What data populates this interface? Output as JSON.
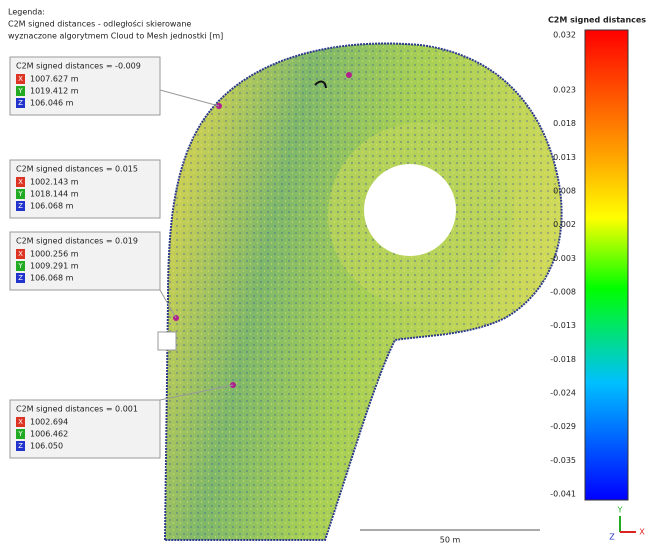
{
  "legend": {
    "lines": [
      "Legenda:",
      "C2M signed distances - odległości skierowane",
      "wyznaczone algorytmem Cloud to Mesh jednostki [m]"
    ]
  },
  "labels": [
    {
      "title": "C2M signed distances = -0.009",
      "rows": [
        {
          "axis": "X",
          "value": "1007.627 m"
        },
        {
          "axis": "Y",
          "value": "1019.412 m"
        },
        {
          "axis": "Z",
          "value": "106.046 m"
        }
      ]
    },
    {
      "title": "C2M signed distances = 0.015",
      "rows": [
        {
          "axis": "X",
          "value": "1002.143 m"
        },
        {
          "axis": "Y",
          "value": "1018.144 m"
        },
        {
          "axis": "Z",
          "value": "106.068 m"
        }
      ]
    },
    {
      "title": "C2M signed distances = 0.019",
      "rows": [
        {
          "axis": "X",
          "value": "1000.256 m"
        },
        {
          "axis": "Y",
          "value": "1009.291 m"
        },
        {
          "axis": "Z",
          "value": "106.068 m"
        }
      ]
    },
    {
      "title": "C2M signed distances = 0.001",
      "rows": [
        {
          "axis": "X",
          "value": "1002.694"
        },
        {
          "axis": "Y",
          "value": "1006.462"
        },
        {
          "axis": "Z",
          "value": "106.050"
        }
      ]
    }
  ],
  "color_scale": {
    "title": "C2M signed distances",
    "ticks": [
      "0.032",
      "0.023",
      "0.018",
      "0.013",
      "0.008",
      "0.002",
      "-0.003",
      "-0.008",
      "-0.013",
      "-0.018",
      "-0.024",
      "-0.029",
      "-0.035",
      "-0.041"
    ]
  },
  "scale_bar": {
    "label": "50 m"
  },
  "axes": {
    "x": "X",
    "y": "Y",
    "z": "Z"
  }
}
